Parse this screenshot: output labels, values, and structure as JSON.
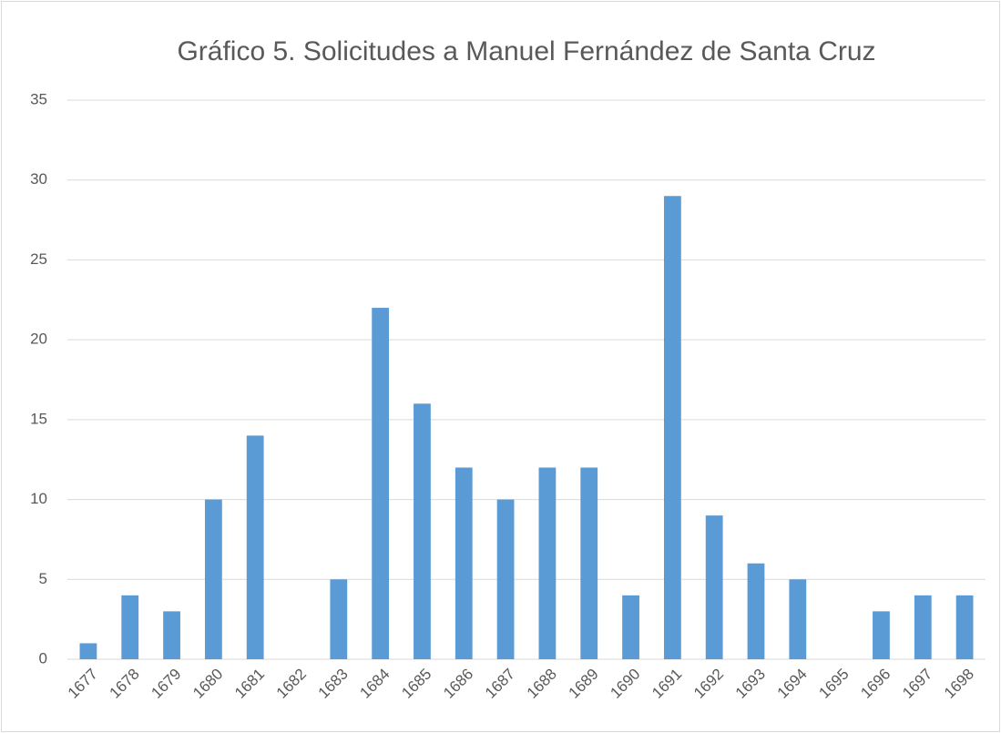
{
  "chart_data": {
    "type": "bar",
    "title": "Gráfico 5. Solicitudes a Manuel Fernández de Santa Cruz",
    "categories": [
      "1677",
      "1678",
      "1679",
      "1680",
      "1681",
      "1682",
      "1683",
      "1684",
      "1685",
      "1686",
      "1687",
      "1688",
      "1689",
      "1690",
      "1691",
      "1692",
      "1693",
      "1694",
      "1695",
      "1696",
      "1697",
      "1698"
    ],
    "values": [
      1,
      4,
      3,
      10,
      14,
      0,
      5,
      22,
      16,
      12,
      10,
      12,
      12,
      4,
      29,
      9,
      6,
      5,
      0,
      3,
      4,
      4
    ],
    "color": "#5b9bd5",
    "ylim": [
      0,
      35
    ],
    "yticks": [
      0,
      5,
      10,
      15,
      20,
      25,
      30,
      35
    ],
    "grid": true
  }
}
